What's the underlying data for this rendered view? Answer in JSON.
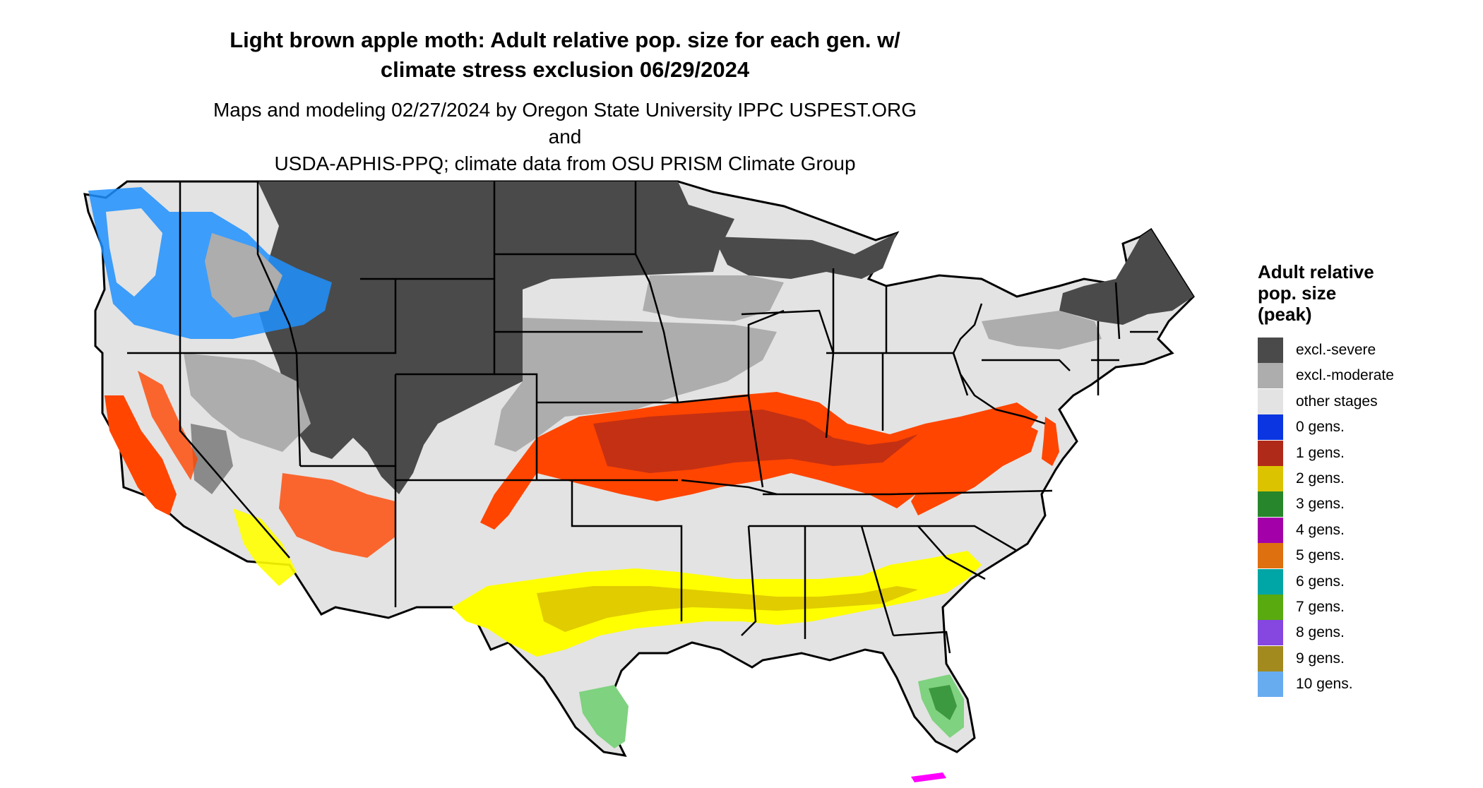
{
  "title_line1": "Light brown apple moth: Adult relative pop. size for each gen. w/",
  "title_line2": "climate stress exclusion 06/29/2024",
  "subtitle_line1": "Maps and modeling 02/27/2024 by Oregon State University IPPC USPEST.ORG and",
  "subtitle_line2": "USDA-APHIS-PPQ; climate data from OSU PRISM Climate Group",
  "legend": {
    "title": [
      "Adult relative",
      "pop. size",
      "(peak)"
    ],
    "items": [
      {
        "label": "excl.-severe",
        "color": "#4a4a4a"
      },
      {
        "label": "excl.-moderate",
        "color": "#adadad"
      },
      {
        "label": "other stages",
        "color": "#e3e3e3"
      },
      {
        "label": "0 gens.",
        "color": "#0a35e0"
      },
      {
        "label": "1 gens.",
        "color": "#b02a1a"
      },
      {
        "label": "2 gens.",
        "color": "#dcc300"
      },
      {
        "label": "3 gens.",
        "color": "#27862b"
      },
      {
        "label": "4 gens.",
        "color": "#a300a9"
      },
      {
        "label": "5 gens.",
        "color": "#de7010"
      },
      {
        "label": "6 gens.",
        "color": "#00a5a5"
      },
      {
        "label": "7 gens.",
        "color": "#58aa0e"
      },
      {
        "label": "8 gens.",
        "color": "#8547e0"
      },
      {
        "label": "9 gens.",
        "color": "#a38a1f"
      },
      {
        "label": "10 gens.",
        "color": "#68acf0"
      }
    ]
  },
  "map_colors": {
    "background_land": "#e3e3e3",
    "severe": "#4a4a4a",
    "moderate": "#adadad",
    "one_gen_bright": "#ff4500",
    "one_gen_dark": "#b02a1a",
    "two_gen_bright": "#ffff00",
    "two_gen_dark": "#dcc300",
    "three_gen_light": "#7fd27f",
    "three_gen_dark": "#27862b",
    "zero_gen": "#1e90ff",
    "four_gen": "#ff00ff",
    "border": "#000000"
  }
}
